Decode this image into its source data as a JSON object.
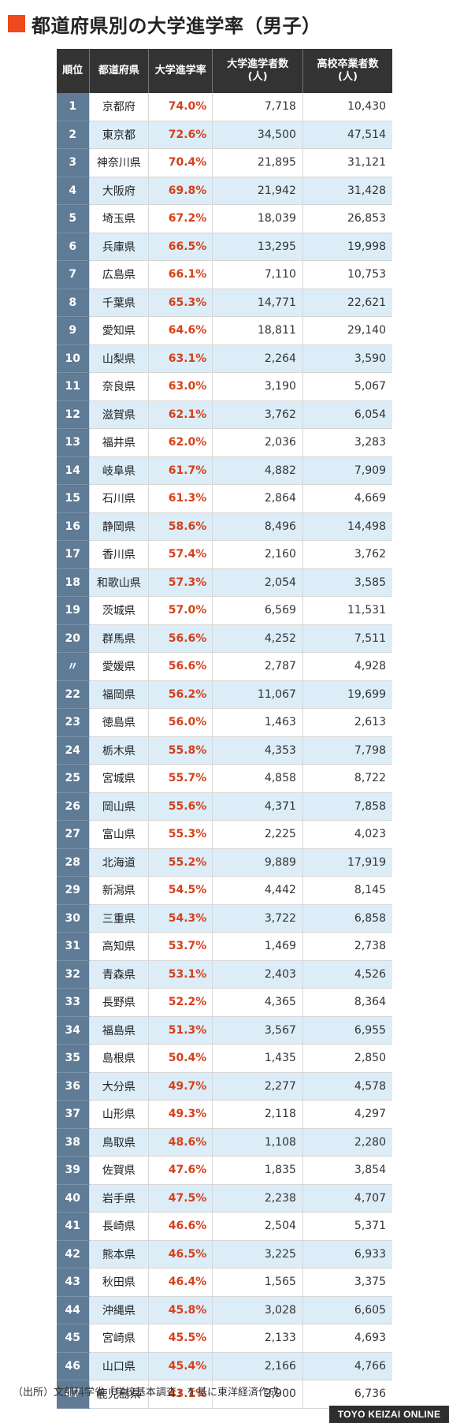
{
  "title": "都道府県別の大学進学率（男子）",
  "accent_color": "#ee4a1c",
  "rank_cell_color": "#5f7b95",
  "rate_color": "#d6401a",
  "table": {
    "headers": {
      "rank": "順位",
      "prefecture": "都道府県",
      "rate": "大学進学率",
      "entrants_line1": "大学進学者数",
      "entrants_line2": "(人)",
      "graduates_line1": "高校卒業者数",
      "graduates_line2": "(人)"
    },
    "rows": [
      {
        "rank": "1",
        "pref": "京都府",
        "rate": "74.0%",
        "entrants": "7,718",
        "graduates": "10,430"
      },
      {
        "rank": "2",
        "pref": "東京都",
        "rate": "72.6%",
        "entrants": "34,500",
        "graduates": "47,514"
      },
      {
        "rank": "3",
        "pref": "神奈川県",
        "rate": "70.4%",
        "entrants": "21,895",
        "graduates": "31,121"
      },
      {
        "rank": "4",
        "pref": "大阪府",
        "rate": "69.8%",
        "entrants": "21,942",
        "graduates": "31,428"
      },
      {
        "rank": "5",
        "pref": "埼玉県",
        "rate": "67.2%",
        "entrants": "18,039",
        "graduates": "26,853"
      },
      {
        "rank": "6",
        "pref": "兵庫県",
        "rate": "66.5%",
        "entrants": "13,295",
        "graduates": "19,998"
      },
      {
        "rank": "7",
        "pref": "広島県",
        "rate": "66.1%",
        "entrants": "7,110",
        "graduates": "10,753"
      },
      {
        "rank": "8",
        "pref": "千葉県",
        "rate": "65.3%",
        "entrants": "14,771",
        "graduates": "22,621"
      },
      {
        "rank": "9",
        "pref": "愛知県",
        "rate": "64.6%",
        "entrants": "18,811",
        "graduates": "29,140"
      },
      {
        "rank": "10",
        "pref": "山梨県",
        "rate": "63.1%",
        "entrants": "2,264",
        "graduates": "3,590"
      },
      {
        "rank": "11",
        "pref": "奈良県",
        "rate": "63.0%",
        "entrants": "3,190",
        "graduates": "5,067"
      },
      {
        "rank": "12",
        "pref": "滋賀県",
        "rate": "62.1%",
        "entrants": "3,762",
        "graduates": "6,054"
      },
      {
        "rank": "13",
        "pref": "福井県",
        "rate": "62.0%",
        "entrants": "2,036",
        "graduates": "3,283"
      },
      {
        "rank": "14",
        "pref": "岐阜県",
        "rate": "61.7%",
        "entrants": "4,882",
        "graduates": "7,909"
      },
      {
        "rank": "15",
        "pref": "石川県",
        "rate": "61.3%",
        "entrants": "2,864",
        "graduates": "4,669"
      },
      {
        "rank": "16",
        "pref": "静岡県",
        "rate": "58.6%",
        "entrants": "8,496",
        "graduates": "14,498"
      },
      {
        "rank": "17",
        "pref": "香川県",
        "rate": "57.4%",
        "entrants": "2,160",
        "graduates": "3,762"
      },
      {
        "rank": "18",
        "pref": "和歌山県",
        "rate": "57.3%",
        "entrants": "2,054",
        "graduates": "3,585"
      },
      {
        "rank": "19",
        "pref": "茨城県",
        "rate": "57.0%",
        "entrants": "6,569",
        "graduates": "11,531"
      },
      {
        "rank": "20",
        "pref": "群馬県",
        "rate": "56.6%",
        "entrants": "4,252",
        "graduates": "7,511"
      },
      {
        "rank": "〃",
        "pref": "愛媛県",
        "rate": "56.6%",
        "entrants": "2,787",
        "graduates": "4,928"
      },
      {
        "rank": "22",
        "pref": "福岡県",
        "rate": "56.2%",
        "entrants": "11,067",
        "graduates": "19,699"
      },
      {
        "rank": "23",
        "pref": "徳島県",
        "rate": "56.0%",
        "entrants": "1,463",
        "graduates": "2,613"
      },
      {
        "rank": "24",
        "pref": "栃木県",
        "rate": "55.8%",
        "entrants": "4,353",
        "graduates": "7,798"
      },
      {
        "rank": "25",
        "pref": "宮城県",
        "rate": "55.7%",
        "entrants": "4,858",
        "graduates": "8,722"
      },
      {
        "rank": "26",
        "pref": "岡山県",
        "rate": "55.6%",
        "entrants": "4,371",
        "graduates": "7,858"
      },
      {
        "rank": "27",
        "pref": "富山県",
        "rate": "55.3%",
        "entrants": "2,225",
        "graduates": "4,023"
      },
      {
        "rank": "28",
        "pref": "北海道",
        "rate": "55.2%",
        "entrants": "9,889",
        "graduates": "17,919"
      },
      {
        "rank": "29",
        "pref": "新潟県",
        "rate": "54.5%",
        "entrants": "4,442",
        "graduates": "8,145"
      },
      {
        "rank": "30",
        "pref": "三重県",
        "rate": "54.3%",
        "entrants": "3,722",
        "graduates": "6,858"
      },
      {
        "rank": "31",
        "pref": "高知県",
        "rate": "53.7%",
        "entrants": "1,469",
        "graduates": "2,738"
      },
      {
        "rank": "32",
        "pref": "青森県",
        "rate": "53.1%",
        "entrants": "2,403",
        "graduates": "4,526"
      },
      {
        "rank": "33",
        "pref": "長野県",
        "rate": "52.2%",
        "entrants": "4,365",
        "graduates": "8,364"
      },
      {
        "rank": "34",
        "pref": "福島県",
        "rate": "51.3%",
        "entrants": "3,567",
        "graduates": "6,955"
      },
      {
        "rank": "35",
        "pref": "島根県",
        "rate": "50.4%",
        "entrants": "1,435",
        "graduates": "2,850"
      },
      {
        "rank": "36",
        "pref": "大分県",
        "rate": "49.7%",
        "entrants": "2,277",
        "graduates": "4,578"
      },
      {
        "rank": "37",
        "pref": "山形県",
        "rate": "49.3%",
        "entrants": "2,118",
        "graduates": "4,297"
      },
      {
        "rank": "38",
        "pref": "鳥取県",
        "rate": "48.6%",
        "entrants": "1,108",
        "graduates": "2,280"
      },
      {
        "rank": "39",
        "pref": "佐賀県",
        "rate": "47.6%",
        "entrants": "1,835",
        "graduates": "3,854"
      },
      {
        "rank": "40",
        "pref": "岩手県",
        "rate": "47.5%",
        "entrants": "2,238",
        "graduates": "4,707"
      },
      {
        "rank": "41",
        "pref": "長崎県",
        "rate": "46.6%",
        "entrants": "2,504",
        "graduates": "5,371"
      },
      {
        "rank": "42",
        "pref": "熊本県",
        "rate": "46.5%",
        "entrants": "3,225",
        "graduates": "6,933"
      },
      {
        "rank": "43",
        "pref": "秋田県",
        "rate": "46.4%",
        "entrants": "1,565",
        "graduates": "3,375"
      },
      {
        "rank": "44",
        "pref": "沖縄県",
        "rate": "45.8%",
        "entrants": "3,028",
        "graduates": "6,605"
      },
      {
        "rank": "45",
        "pref": "宮崎県",
        "rate": "45.5%",
        "entrants": "2,133",
        "graduates": "4,693"
      },
      {
        "rank": "46",
        "pref": "山口県",
        "rate": "45.4%",
        "entrants": "2,166",
        "graduates": "4,766"
      },
      {
        "rank": "47",
        "pref": "鹿児島県",
        "rate": "43.1%",
        "entrants": "2,900",
        "graduates": "6,736"
      }
    ]
  },
  "source": "（出所）文部科学省「学校基本調査」を基に東洋経済作成",
  "brand": "TOYO KEIZAI ONLINE"
}
